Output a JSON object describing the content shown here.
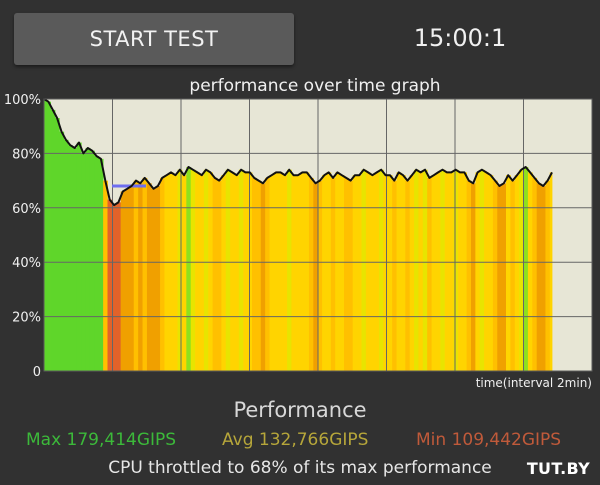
{
  "start_button_label": "START TEST",
  "timer": "15:00:1",
  "graph": {
    "title": "performance over time graph",
    "y_ticks": [
      "100%",
      "80%",
      "60%",
      "40%",
      "20%",
      "0"
    ],
    "x_label": "time(interval 2min)",
    "vertical_gridlines": 7
  },
  "chart_data": {
    "type": "line",
    "title": "performance over time graph",
    "xlabel": "time(interval 2min)",
    "ylabel": "",
    "ylim": [
      0,
      100
    ],
    "y_unit": "%",
    "average_marker": 68,
    "series": [
      {
        "values": [
          100,
          99,
          96,
          93,
          88,
          85,
          83,
          82,
          84,
          80,
          82,
          81,
          79,
          78,
          70,
          63,
          61,
          62,
          66,
          67,
          68,
          70,
          69,
          71,
          69,
          67,
          68,
          71,
          72,
          73,
          72,
          74,
          72,
          75,
          74,
          73,
          72,
          74,
          73,
          71,
          70,
          72,
          74,
          73,
          72,
          74,
          73,
          73,
          71,
          70,
          69,
          71,
          72,
          73,
          73,
          72,
          74,
          72,
          72,
          73,
          73,
          71,
          69,
          70,
          72,
          73,
          71,
          73,
          72,
          71,
          70,
          72,
          72,
          74,
          73,
          72,
          73,
          74,
          72,
          72,
          70,
          73,
          72,
          70,
          72,
          74,
          73,
          74,
          71,
          72,
          73,
          74,
          73,
          73,
          74,
          73,
          73,
          70,
          69,
          73,
          74,
          73,
          72,
          70,
          68,
          69,
          72,
          70,
          72,
          74,
          75,
          73,
          71,
          69,
          68,
          70,
          73
        ]
      }
    ],
    "background_bands": "green-to-yellow-to-orange heat bands indicating performance level per sample"
  },
  "performance_title": "Performance",
  "stats": {
    "max": "Max 179,414GIPS",
    "avg": "Avg 132,766GIPS",
    "min": "Min 109,442GIPS"
  },
  "throttle_text": "CPU throttled to 68% of its max performance",
  "watermark": "TUT.BY",
  "colors": {
    "background": "#313131",
    "plot_background": "#e7e6d6",
    "max_color": "#3cb93a",
    "avg_color": "#b6a63a",
    "min_color": "#c05a3a",
    "avg_marker": "#6e6ef0"
  }
}
